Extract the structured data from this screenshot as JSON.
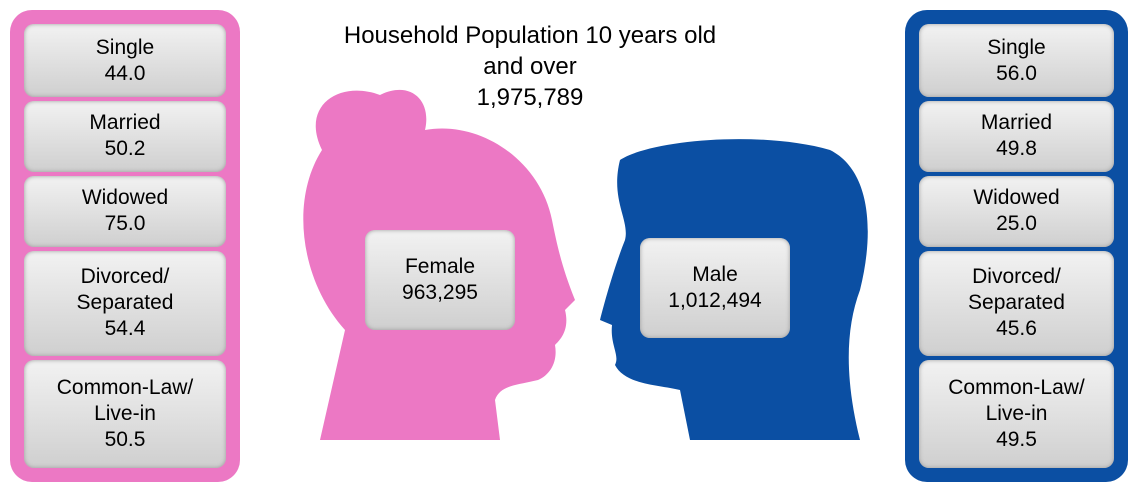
{
  "title": "Household Population 10 years old and over",
  "total": "1,975,789",
  "female": {
    "label": "Female",
    "value": "963,295",
    "status": [
      {
        "label": "Single",
        "value": "44.0"
      },
      {
        "label": "Married",
        "value": "50.2"
      },
      {
        "label": "Widowed",
        "value": "75.0"
      },
      {
        "label": "Divorced/ Separated",
        "value": "54.4"
      },
      {
        "label": "Common-Law/ Live-in",
        "value": "50.5"
      }
    ]
  },
  "male": {
    "label": "Male",
    "value": "1,012,494",
    "status": [
      {
        "label": "Single",
        "value": "56.0"
      },
      {
        "label": "Married",
        "value": "49.8"
      },
      {
        "label": "Widowed",
        "value": "25.0"
      },
      {
        "label": "Divorced/ Separated",
        "value": "45.6"
      },
      {
        "label": "Common-Law/ Live-in",
        "value": "49.5"
      }
    ]
  }
}
